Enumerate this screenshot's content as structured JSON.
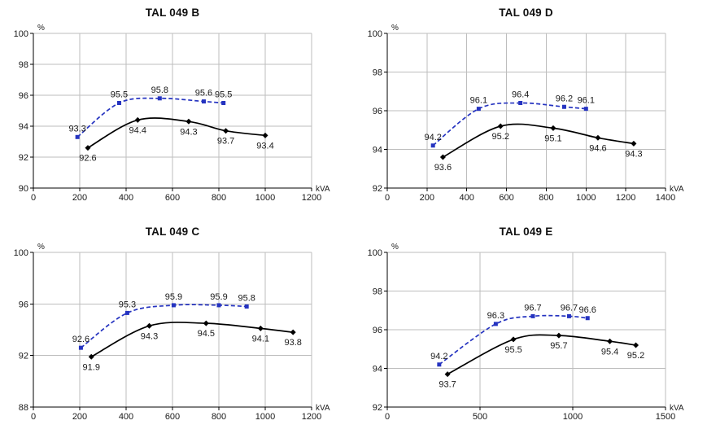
{
  "style": {
    "background": "#ffffff",
    "grid_color": "#bdbdbd",
    "axis_color": "#000000",
    "label_color": "#1a1a1a",
    "upper_series_color": "#2533c0",
    "lower_series_color": "#000000"
  },
  "chart_data": [
    {
      "type": "line",
      "title": "TAL 049 B",
      "ylabel": "%",
      "xlabel": "kVA",
      "xlim": [
        0,
        1200
      ],
      "xticks": [
        0,
        200,
        400,
        600,
        800,
        1000,
        1200
      ],
      "ylim": [
        90,
        100
      ],
      "yticks": [
        90,
        92,
        94,
        96,
        98,
        100
      ],
      "grid": true,
      "legend": "none",
      "series": [
        {
          "name": "upper-efficiency-curve",
          "color": "#2533c0",
          "line_style": "dashed",
          "marker": "square",
          "label_side": "above",
          "points": [
            [
              190,
              93.3
            ],
            [
              370,
              95.5
            ],
            [
              545,
              95.8
            ],
            [
              735,
              95.6
            ],
            [
              820,
              95.5
            ]
          ]
        },
        {
          "name": "lower-efficiency-curve",
          "color": "#000000",
          "line_style": "solid",
          "marker": "diamond",
          "label_side": "below",
          "points": [
            [
              235,
              92.6
            ],
            [
              450,
              94.4
            ],
            [
              670,
              94.3
            ],
            [
              830,
              93.7
            ],
            [
              1000,
              93.4
            ]
          ]
        }
      ]
    },
    {
      "type": "line",
      "title": "TAL 049 D",
      "ylabel": "%",
      "xlabel": "kVA",
      "xlim": [
        0,
        1400
      ],
      "xticks": [
        0,
        200,
        400,
        600,
        800,
        1000,
        1200,
        1400
      ],
      "ylim": [
        92,
        100
      ],
      "yticks": [
        92,
        94,
        96,
        98,
        100
      ],
      "grid": true,
      "legend": "none",
      "series": [
        {
          "name": "upper-efficiency-curve",
          "color": "#2533c0",
          "line_style": "dashed",
          "marker": "square",
          "label_side": "above",
          "points": [
            [
              230,
              94.2
            ],
            [
              460,
              96.1
            ],
            [
              670,
              96.4
            ],
            [
              890,
              96.2
            ],
            [
              1000,
              96.1
            ]
          ]
        },
        {
          "name": "lower-efficiency-curve",
          "color": "#000000",
          "line_style": "solid",
          "marker": "diamond",
          "label_side": "below",
          "points": [
            [
              280,
              93.6
            ],
            [
              570,
              95.2
            ],
            [
              835,
              95.1
            ],
            [
              1060,
              94.6
            ],
            [
              1240,
              94.3
            ]
          ]
        }
      ]
    },
    {
      "type": "line",
      "title": "TAL 049 C",
      "ylabel": "%",
      "xlabel": "kVA",
      "xlim": [
        0,
        1200
      ],
      "xticks": [
        0,
        200,
        400,
        600,
        800,
        1000,
        1200
      ],
      "ylim": [
        88,
        100
      ],
      "yticks": [
        88,
        92,
        96,
        100
      ],
      "grid": true,
      "legend": "none",
      "series": [
        {
          "name": "upper-efficiency-curve",
          "color": "#2533c0",
          "line_style": "dashed",
          "marker": "square",
          "label_side": "above",
          "points": [
            [
              205,
              92.6
            ],
            [
              405,
              95.3
            ],
            [
              605,
              95.9
            ],
            [
              800,
              95.9
            ],
            [
              920,
              95.8
            ]
          ]
        },
        {
          "name": "lower-efficiency-curve",
          "color": "#000000",
          "line_style": "solid",
          "marker": "diamond",
          "label_side": "below",
          "points": [
            [
              250,
              91.9
            ],
            [
              500,
              94.3
            ],
            [
              745,
              94.5
            ],
            [
              980,
              94.1
            ],
            [
              1120,
              93.8
            ]
          ]
        }
      ]
    },
    {
      "type": "line",
      "title": "TAL 049 E",
      "ylabel": "%",
      "xlabel": "kVA",
      "xlim": [
        0,
        1500
      ],
      "xticks": [
        0,
        500,
        1000,
        1500
      ],
      "ylim": [
        92,
        100
      ],
      "yticks": [
        92,
        94,
        96,
        98,
        100
      ],
      "grid": true,
      "legend": "none",
      "series": [
        {
          "name": "upper-efficiency-curve",
          "color": "#2533c0",
          "line_style": "dashed",
          "marker": "square",
          "label_side": "above",
          "points": [
            [
              280,
              94.2
            ],
            [
              585,
              96.3
            ],
            [
              785,
              96.7
            ],
            [
              980,
              96.7
            ],
            [
              1080,
              96.6
            ]
          ]
        },
        {
          "name": "lower-efficiency-curve",
          "color": "#000000",
          "line_style": "solid",
          "marker": "diamond",
          "label_side": "below",
          "points": [
            [
              325,
              93.7
            ],
            [
              680,
              95.5
            ],
            [
              925,
              95.7
            ],
            [
              1200,
              95.4
            ],
            [
              1340,
              95.2
            ]
          ]
        }
      ]
    }
  ]
}
